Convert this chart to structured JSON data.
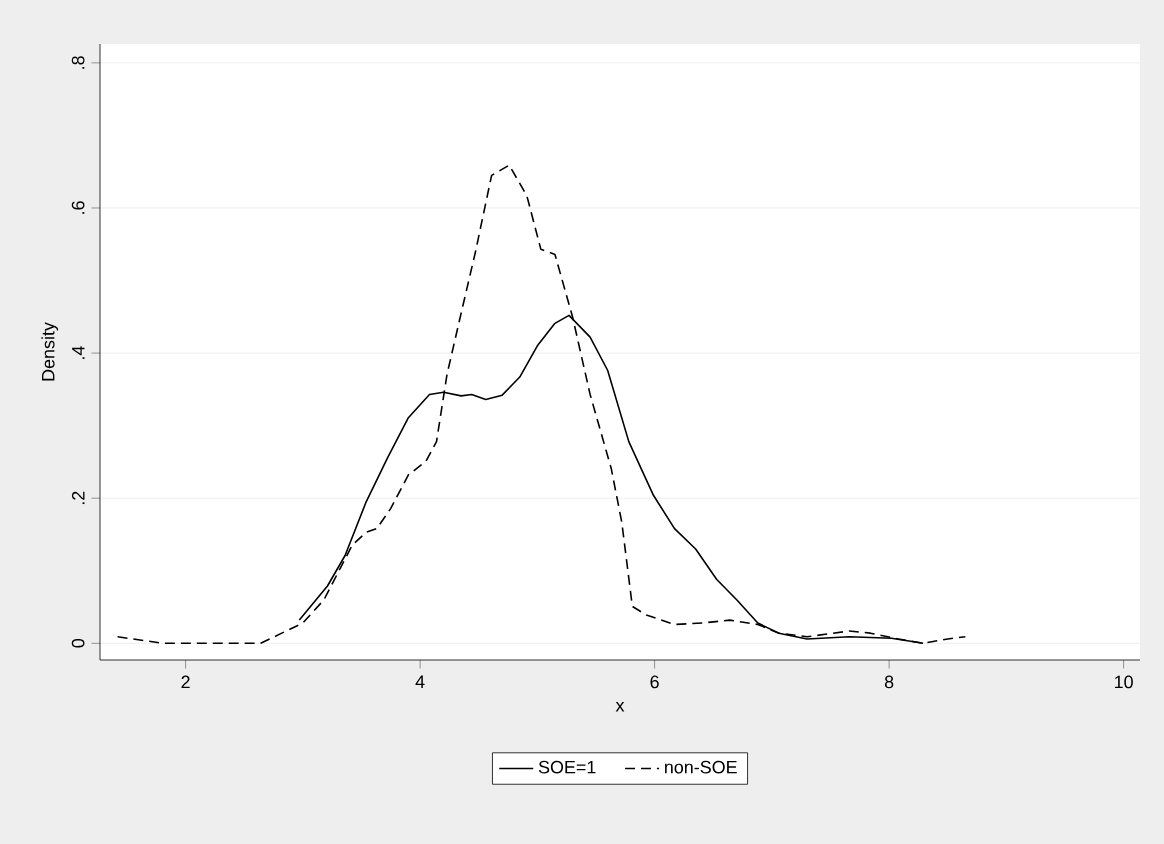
{
  "chart_data": {
    "type": "line",
    "xlabel": "x",
    "ylabel": "Density",
    "xlim": [
      1.27,
      10.14
    ],
    "ylim": [
      -0.023,
      0.826
    ],
    "xticks": [
      2,
      4,
      6,
      8,
      10
    ],
    "yticks": [
      0,
      {
        "value": 0.2,
        "label": ".2"
      },
      {
        "value": 0.4,
        "label": ".4"
      },
      {
        "value": 0.6,
        "label": ".6"
      },
      {
        "value": 0.8,
        "label": ".8"
      }
    ],
    "grid": "y",
    "legend": "bottom",
    "series": [
      {
        "name": "SOE=1",
        "color": "#000000",
        "line_style": "solid",
        "x": [
          2.97,
          3.21,
          3.36,
          3.54,
          3.72,
          3.9,
          4.08,
          4.2,
          4.35,
          4.44,
          4.56,
          4.7,
          4.85,
          5.0,
          5.15,
          5.27,
          5.45,
          5.6,
          5.78,
          5.99,
          6.17,
          6.35,
          6.53,
          6.7,
          6.88,
          7.06,
          7.3,
          7.66,
          8.02,
          8.29
        ],
        "values": [
          0.032,
          0.079,
          0.121,
          0.195,
          0.255,
          0.311,
          0.343,
          0.346,
          0.341,
          0.343,
          0.336,
          0.342,
          0.367,
          0.41,
          0.441,
          0.452,
          0.422,
          0.376,
          0.278,
          0.204,
          0.158,
          0.13,
          0.088,
          0.06,
          0.028,
          0.014,
          0.006,
          0.009,
          0.007,
          0
        ]
      },
      {
        "name": "non-SOE",
        "color": "#000000",
        "line_style": "dashed",
        "x": [
          1.42,
          1.81,
          2.64,
          2.82,
          3.0,
          3.18,
          3.42,
          3.54,
          3.63,
          3.75,
          3.9,
          4.05,
          4.14,
          4.23,
          4.35,
          4.47,
          4.61,
          4.76,
          4.91,
          5.03,
          5.15,
          5.3,
          5.45,
          5.63,
          5.72,
          5.81,
          5.93,
          6.17,
          6.41,
          6.64,
          6.88,
          7.06,
          7.3,
          7.66,
          7.84,
          8.08,
          8.29,
          8.5,
          8.65
        ],
        "values": [
          0.009,
          0,
          0,
          0.014,
          0.028,
          0.06,
          0.135,
          0.153,
          0.158,
          0.186,
          0.232,
          0.251,
          0.278,
          0.371,
          0.455,
          0.538,
          0.645,
          0.659,
          0.617,
          0.543,
          0.536,
          0.45,
          0.343,
          0.241,
          0.167,
          0.051,
          0.039,
          0.026,
          0.028,
          0.032,
          0.026,
          0.014,
          0.009,
          0.017,
          0.014,
          0.006,
          0,
          0.006,
          0.009
        ]
      }
    ]
  }
}
